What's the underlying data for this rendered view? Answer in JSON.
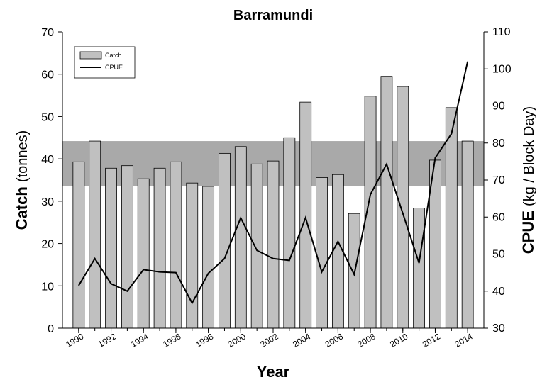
{
  "chart_data": {
    "type": "bar",
    "title": "Barramundi",
    "x_label": "Year",
    "y_label_main": "Catch",
    "y_label_unit": "(tonnes)",
    "y2_label_main": "CPUE",
    "y2_label_unit": "(kg / Block Day)",
    "x": [
      1990,
      1991,
      1992,
      1993,
      1994,
      1995,
      1996,
      1997,
      1998,
      1999,
      2000,
      2001,
      2002,
      2003,
      2004,
      2005,
      2006,
      2007,
      2008,
      2009,
      2010,
      2011,
      2012,
      2013,
      2014
    ],
    "xlim": [
      1989,
      2015
    ],
    "xticks": [
      1990,
      1992,
      1994,
      1996,
      1998,
      2000,
      2002,
      2004,
      2006,
      2008,
      2010,
      2012,
      2014
    ],
    "ylim": [
      0,
      70
    ],
    "yticks": [
      0,
      10,
      20,
      30,
      40,
      50,
      60,
      70
    ],
    "y2lim": [
      30,
      110
    ],
    "y2ticks": [
      30,
      40,
      50,
      60,
      70,
      80,
      90,
      100,
      110
    ],
    "band": [
      33.5,
      44.2
    ],
    "band_color": "#a9a9a9",
    "legend": "upper left",
    "series": [
      {
        "name": "Catch",
        "type": "bar",
        "color": "#c0c0c0",
        "values": [
          39.3,
          44.2,
          37.8,
          38.4,
          35.3,
          37.8,
          39.3,
          34.3,
          33.5,
          41.3,
          42.9,
          38.8,
          39.5,
          45.0,
          53.4,
          35.6,
          36.3,
          27.1,
          54.8,
          59.5,
          57.1,
          28.4,
          39.7,
          52.1,
          44.2
        ]
      },
      {
        "name": "CPUE",
        "type": "line",
        "color": "#000000",
        "axis": "y2",
        "values": [
          41.5,
          48.8,
          42.0,
          40.0,
          45.8,
          45.2,
          45.0,
          36.8,
          44.8,
          48.8,
          59.8,
          51.0,
          48.8,
          48.3,
          59.8,
          45.2,
          53.4,
          44.5,
          66.1,
          74.3,
          61.0,
          47.6,
          76.0,
          82.5,
          102.0
        ]
      }
    ]
  }
}
